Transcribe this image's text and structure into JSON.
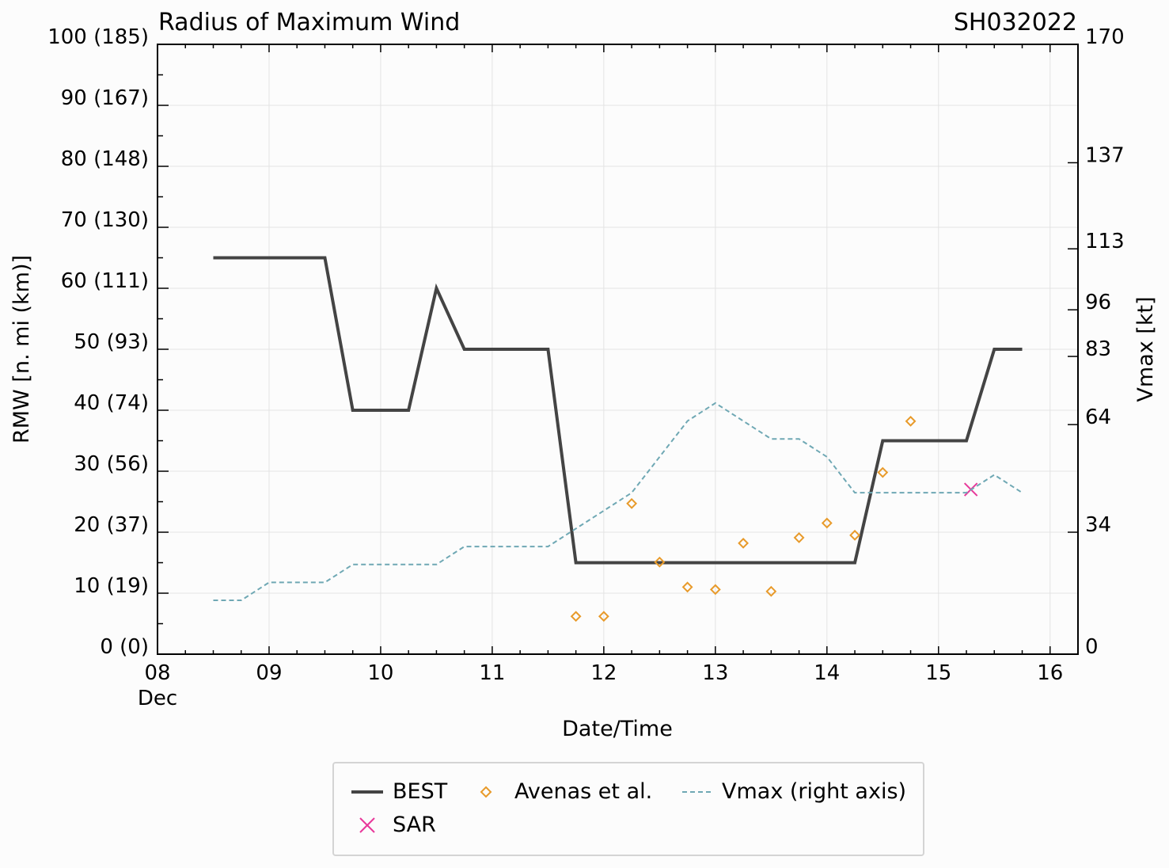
{
  "chart_data": {
    "type": "line",
    "title": "Radius of Maximum Wind",
    "storm_id": "SH032022",
    "xlabel": "Date/Time",
    "ylabel": "RMW [n. mi (km)]",
    "y2label": "Vmax [kt]",
    "xlim": [
      8,
      16.25
    ],
    "ylim": [
      0,
      100
    ],
    "x_ticks": [
      {
        "x": 8,
        "label": "08",
        "sub": "Dec"
      },
      {
        "x": 9,
        "label": "09",
        "sub": ""
      },
      {
        "x": 10,
        "label": "10",
        "sub": ""
      },
      {
        "x": 11,
        "label": "11",
        "sub": ""
      },
      {
        "x": 12,
        "label": "12",
        "sub": ""
      },
      {
        "x": 13,
        "label": "13",
        "sub": ""
      },
      {
        "x": 14,
        "label": "14",
        "sub": ""
      },
      {
        "x": 15,
        "label": "15",
        "sub": ""
      },
      {
        "x": 16,
        "label": "16",
        "sub": ""
      }
    ],
    "y_ticks": [
      {
        "y": 0,
        "label": "0 (0)"
      },
      {
        "y": 10,
        "label": "10 (19)"
      },
      {
        "y": 20,
        "label": "20 (37)"
      },
      {
        "y": 30,
        "label": "30 (56)"
      },
      {
        "y": 40,
        "label": "40 (74)"
      },
      {
        "y": 50,
        "label": "50 (93)"
      },
      {
        "y": 60,
        "label": "60 (111)"
      },
      {
        "y": 70,
        "label": "70 (130)"
      },
      {
        "y": 80,
        "label": "80 (148)"
      },
      {
        "y": 90,
        "label": "90 (167)"
      },
      {
        "y": 100,
        "label": "100 (185)"
      }
    ],
    "y2lim": [
      0,
      170
    ],
    "y2_ticks": [
      {
        "v": 0,
        "label": "0"
      },
      {
        "v": 34,
        "label": "34"
      },
      {
        "v": 64,
        "label": "64"
      },
      {
        "v": 83,
        "label": "83"
      },
      {
        "v": 96,
        "label": "96"
      },
      {
        "v": 113,
        "label": "113"
      },
      {
        "v": 137,
        "label": "137"
      },
      {
        "v": 170,
        "label": "170"
      }
    ],
    "series": [
      {
        "name": "BEST",
        "kind": "line",
        "color": "#444444",
        "x": [
          8.5,
          8.75,
          9.0,
          9.25,
          9.5,
          9.75,
          10.0,
          10.25,
          10.5,
          10.75,
          11.0,
          11.25,
          11.5,
          11.75,
          12.0,
          12.25,
          12.5,
          12.75,
          13.0,
          13.25,
          13.5,
          13.75,
          14.0,
          14.25,
          14.5,
          14.75,
          15.0,
          15.25,
          15.5,
          15.75
        ],
        "values": [
          65,
          65,
          65,
          65,
          65,
          40,
          40,
          40,
          60,
          50,
          50,
          50,
          50,
          15,
          15,
          15,
          15,
          15,
          15,
          15,
          15,
          15,
          15,
          15,
          35,
          35,
          35,
          35,
          50,
          50
        ]
      },
      {
        "name": "SAR",
        "kind": "marker-x",
        "color": "#e8389a",
        "x": [
          15.29
        ],
        "values": [
          27
        ]
      },
      {
        "name": "Avenas et al.",
        "kind": "marker-diamond",
        "color": "#e89a2a",
        "x": [
          11.75,
          12.0,
          12.25,
          12.5,
          12.75,
          13.0,
          13.25,
          13.5,
          13.75,
          14.0,
          14.25,
          14.5,
          14.75
        ],
        "values": [
          6.2,
          6.2,
          24.7,
          15.1,
          11.0,
          10.6,
          18.2,
          10.3,
          19.1,
          21.5,
          19.5,
          29.8,
          38.2
        ]
      },
      {
        "name": "Vmax (right axis)",
        "kind": "dashed-line",
        "axis": "right",
        "color": "#6fa8b4",
        "x": [
          8.5,
          8.75,
          9.0,
          9.25,
          9.5,
          9.75,
          10.0,
          10.25,
          10.5,
          10.75,
          11.0,
          11.25,
          11.5,
          11.75,
          12.0,
          12.25,
          12.5,
          12.75,
          13.0,
          13.25,
          13.5,
          13.75,
          14.0,
          14.25,
          14.5,
          14.75,
          15.0,
          15.25,
          15.5,
          15.75
        ],
        "values": [
          15,
          15,
          20,
          20,
          20,
          25,
          25,
          25,
          25,
          30,
          30,
          30,
          30,
          35,
          40,
          45,
          55,
          65,
          70,
          65,
          60,
          60,
          55,
          45,
          45,
          45,
          45,
          45,
          50,
          45
        ]
      }
    ],
    "legend": {
      "position": "bottom",
      "entries": [
        "BEST",
        "SAR",
        "Avenas et al.",
        "Vmax (right axis)"
      ]
    },
    "grid": true
  }
}
